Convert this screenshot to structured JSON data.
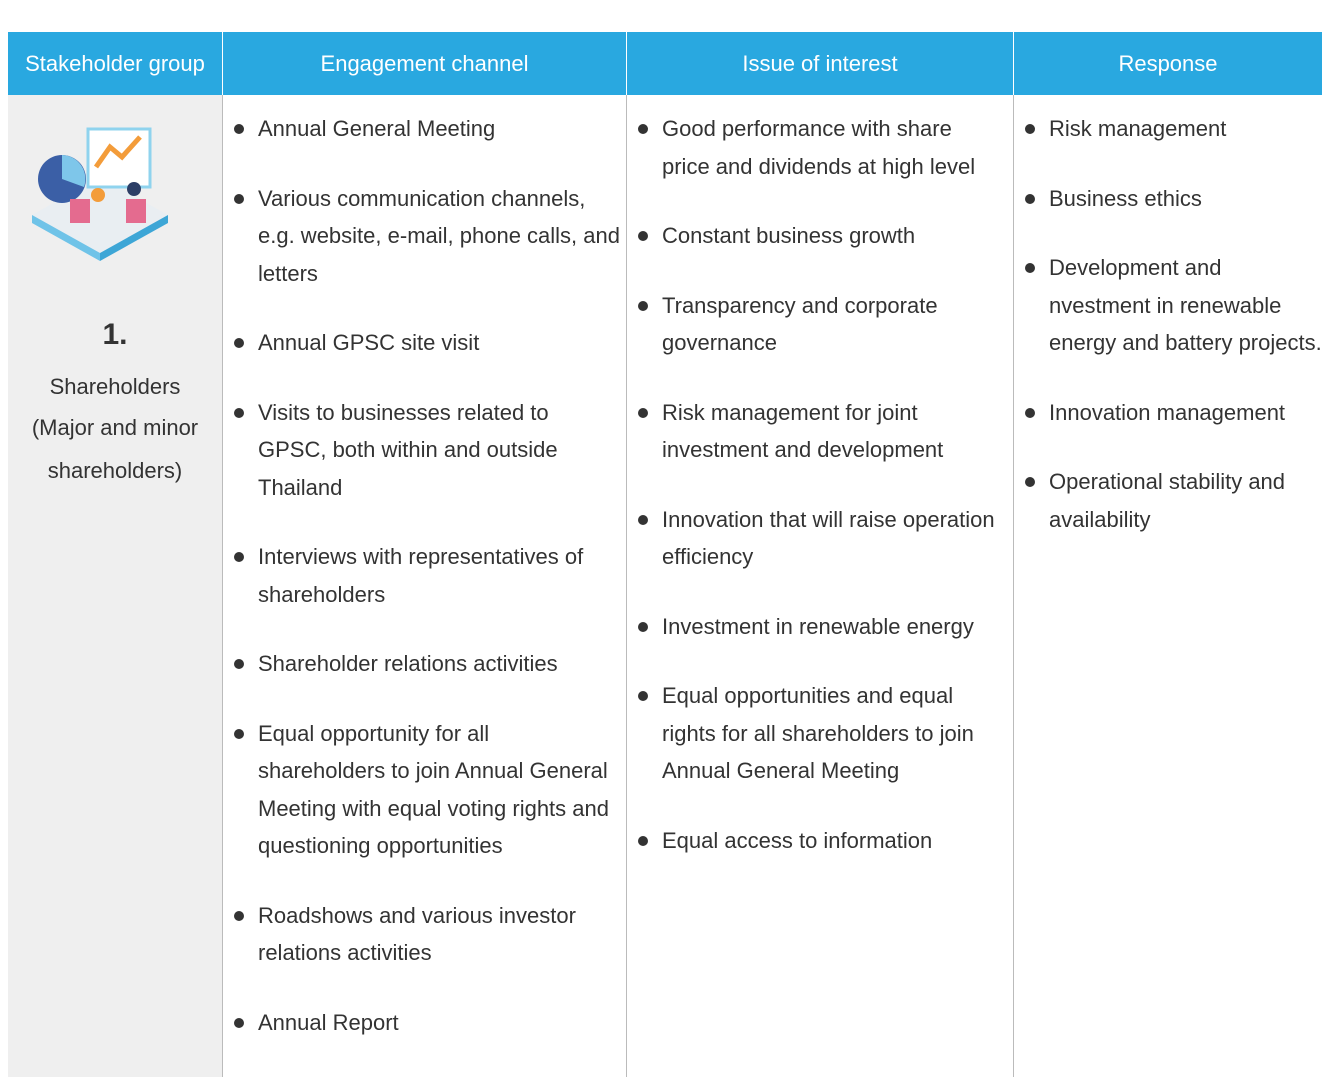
{
  "header": {
    "columns": [
      "Stakeholder group",
      "Engagement channel",
      "Issue of interest",
      "Response"
    ]
  },
  "rows": [
    {
      "number": "1.",
      "group": "Shareholders",
      "detail": "(Major and minor shareholders)",
      "channels": [
        "Annual General Meeting",
        "Various communication channels, e.g. website, e-mail, phone calls, and letters",
        "Annual GPSC site visit",
        "Visits to businesses related to GPSC, both within and outside Thailand",
        "Interviews with representatives of shareholders",
        "Shareholder relations activities",
        "Equal opportunity for all shareholders to join Annual General Meeting with equal voting rights and questioning opportunities",
        "Roadshows and various investor relations activities",
        "Annual Report"
      ],
      "issues": [
        "Good performance with share price and dividends at high level",
        "Constant business growth",
        "Transparency and corporate governance",
        "Risk management for joint investment and development",
        "Innovation that will raise operation efficiency",
        "Investment in renewable energy",
        "Equal opportunities and equal rights for all shareholders to join Annual General Meeting",
        "Equal access to information"
      ],
      "responses": [
        "Risk management",
        "Business ethics",
        "Development and nvestment in renewable energy and battery projects.",
        "Innovation management",
        "Operational stability and availability"
      ]
    }
  ]
}
